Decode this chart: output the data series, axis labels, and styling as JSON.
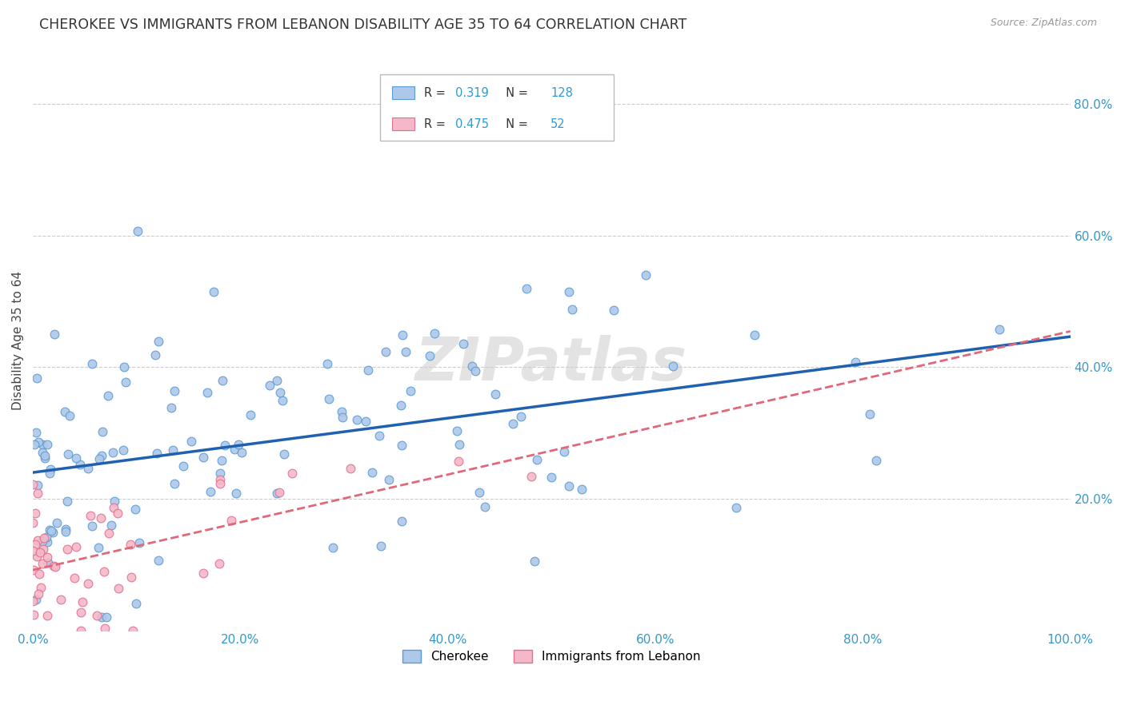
{
  "title": "CHEROKEE VS IMMIGRANTS FROM LEBANON DISABILITY AGE 35 TO 64 CORRELATION CHART",
  "source": "Source: ZipAtlas.com",
  "ylabel": "Disability Age 35 to 64",
  "xtick_labels": [
    "0.0%",
    "20.0%",
    "40.0%",
    "60.0%",
    "80.0%",
    "100.0%"
  ],
  "xtick_vals": [
    0.0,
    0.2,
    0.4,
    0.6,
    0.8,
    1.0
  ],
  "ytick_labels": [
    "20.0%",
    "40.0%",
    "60.0%",
    "80.0%"
  ],
  "ytick_vals": [
    0.2,
    0.4,
    0.6,
    0.8
  ],
  "xlim": [
    0.0,
    1.0
  ],
  "ylim": [
    0.0,
    0.88
  ],
  "cherokee_color": "#adc8e8",
  "cherokee_edge_color": "#5b9bd5",
  "lebanon_color": "#f4b8c8",
  "lebanon_edge_color": "#e07090",
  "trend_cherokee_color": "#2060b0",
  "trend_lebanon_color": "#e06878",
  "trend_lebanon_linestyle": "--",
  "R_cherokee": 0.319,
  "N_cherokee": 128,
  "R_lebanon": 0.475,
  "N_lebanon": 52,
  "seed": 12,
  "watermark": "ZIPatlas",
  "legend_label_cherokee": "Cherokee",
  "legend_label_lebanon": "Immigrants from Lebanon",
  "background_color": "#ffffff",
  "grid_color": "#cccccc"
}
